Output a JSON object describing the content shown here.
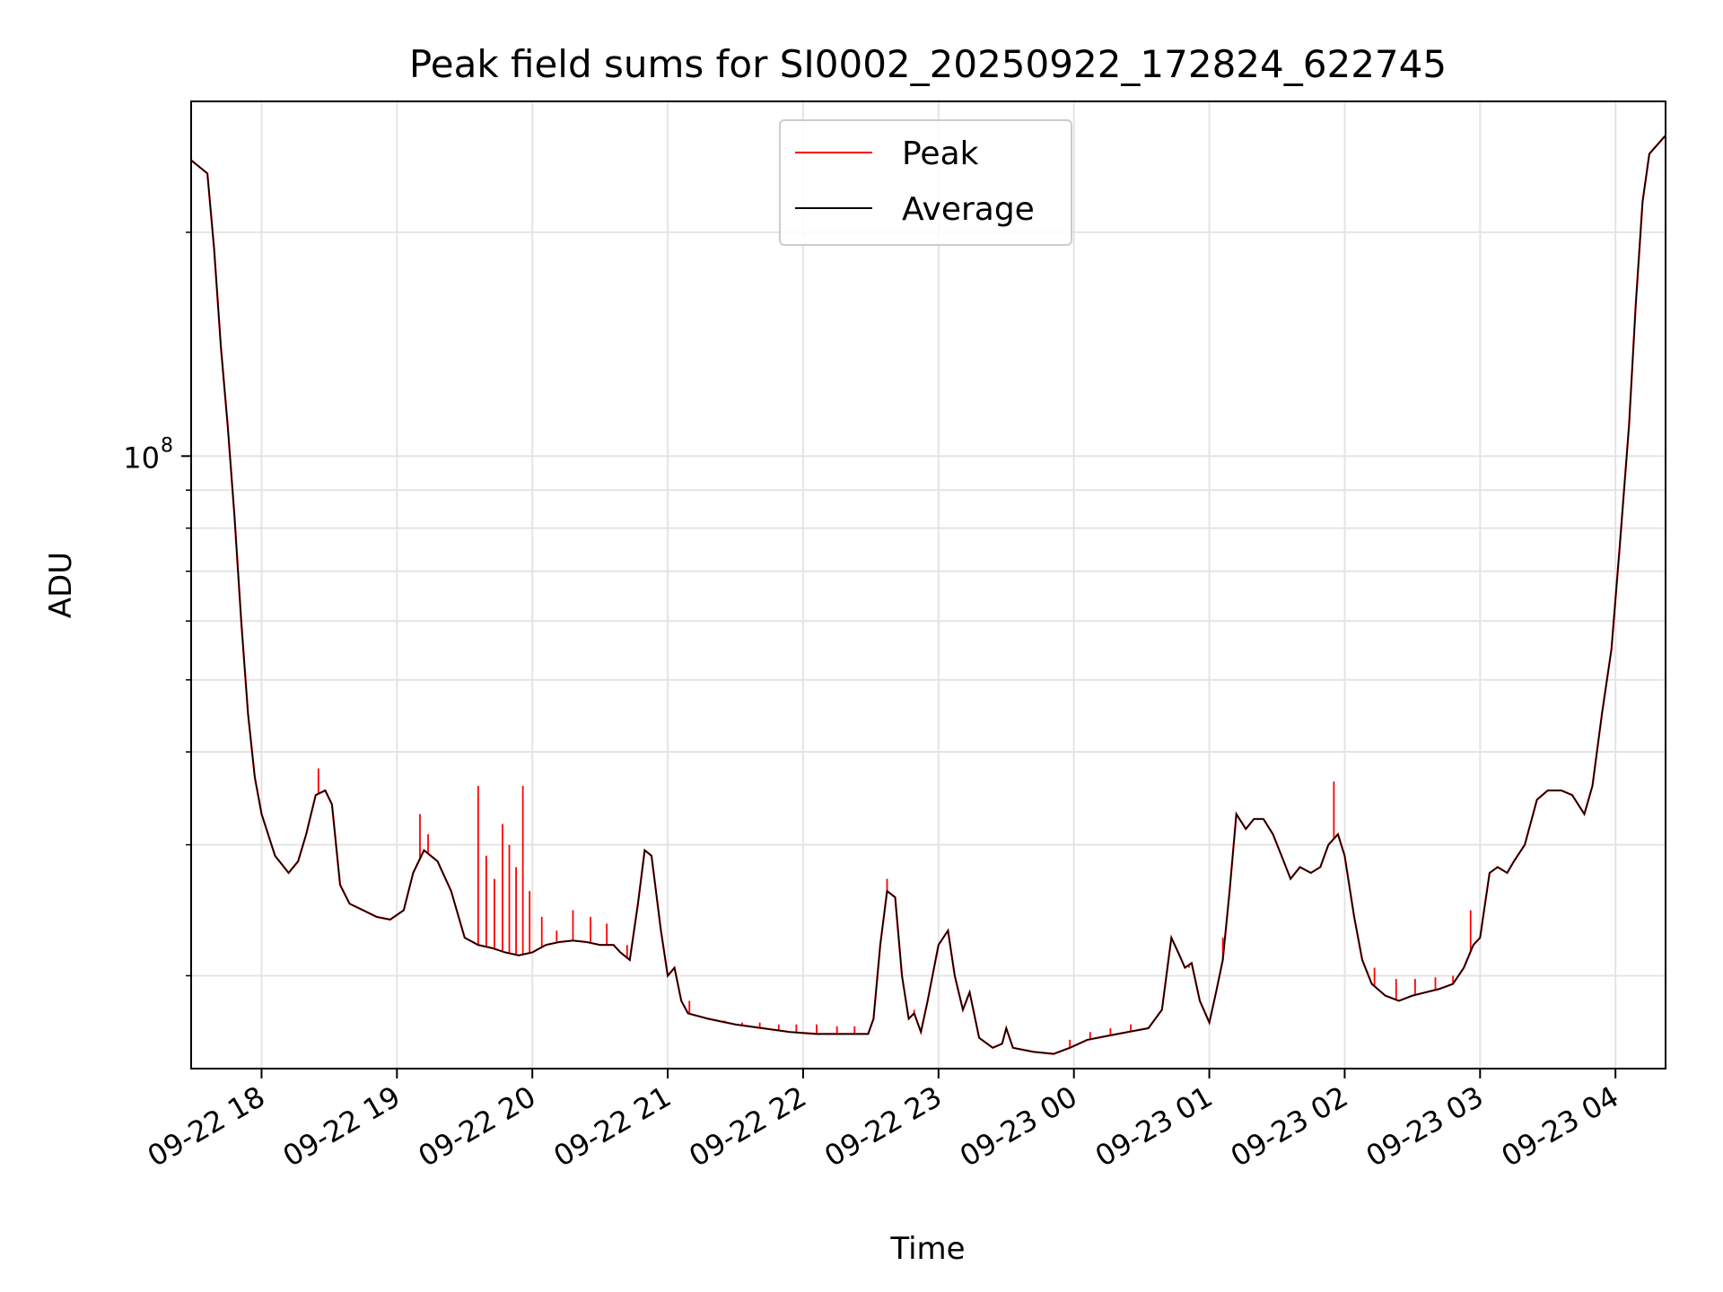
{
  "chart_data": {
    "type": "line",
    "title": "Peak field sums for SI0002_20250922_172824_622745",
    "xlabel": "Time",
    "ylabel": "ADU",
    "y_scale": "log",
    "ylim": [
      15000000,
      300000000
    ],
    "xlim_hours": [
      17.48,
      28.37
    ],
    "y_major_tick": {
      "value": 100000000,
      "base": "10",
      "exponent": "8"
    },
    "y_minor_ticks": [
      20000000,
      30000000,
      40000000,
      50000000,
      60000000,
      70000000,
      80000000,
      90000000,
      200000000
    ],
    "x_ticks": [
      {
        "hour": 18,
        "label": "09-22 18"
      },
      {
        "hour": 19,
        "label": "09-22 19"
      },
      {
        "hour": 20,
        "label": "09-22 20"
      },
      {
        "hour": 21,
        "label": "09-22 21"
      },
      {
        "hour": 22,
        "label": "09-22 22"
      },
      {
        "hour": 23,
        "label": "09-22 23"
      },
      {
        "hour": 24,
        "label": "09-23 00"
      },
      {
        "hour": 25,
        "label": "09-23 01"
      },
      {
        "hour": 26,
        "label": "09-23 02"
      },
      {
        "hour": 27,
        "label": "09-23 03"
      },
      {
        "hour": 28,
        "label": "09-23 04"
      }
    ],
    "grid": true,
    "legend_position": "upper-center",
    "series": [
      {
        "name": "Peak",
        "color": "#ff0000",
        "spikes": [
          [
            18.42,
            38000000
          ],
          [
            19.17,
            33000000
          ],
          [
            19.23,
            31000000
          ],
          [
            19.6,
            36000000
          ],
          [
            19.66,
            29000000
          ],
          [
            19.72,
            27000000
          ],
          [
            19.78,
            32000000
          ],
          [
            19.83,
            30000000
          ],
          [
            19.88,
            28000000
          ],
          [
            19.93,
            36000000
          ],
          [
            19.98,
            26000000
          ],
          [
            20.07,
            24000000
          ],
          [
            20.18,
            23000000
          ],
          [
            20.3,
            24500000
          ],
          [
            20.43,
            24000000
          ],
          [
            20.55,
            23500000
          ],
          [
            20.7,
            22000000
          ],
          [
            21.16,
            18500000
          ],
          [
            21.3,
            17500000
          ],
          [
            21.42,
            17400000
          ],
          [
            21.55,
            17300000
          ],
          [
            21.68,
            17300000
          ],
          [
            21.82,
            17200000
          ],
          [
            21.95,
            17200000
          ],
          [
            22.1,
            17200000
          ],
          [
            22.25,
            17100000
          ],
          [
            22.38,
            17100000
          ],
          [
            22.5,
            17100000
          ],
          [
            22.62,
            27000000
          ],
          [
            22.82,
            18000000
          ],
          [
            23.97,
            16400000
          ],
          [
            24.12,
            16800000
          ],
          [
            24.27,
            17000000
          ],
          [
            24.42,
            17200000
          ],
          [
            24.85,
            20500000
          ],
          [
            25.1,
            22500000
          ],
          [
            25.92,
            36500000
          ],
          [
            26.22,
            20500000
          ],
          [
            26.38,
            19800000
          ],
          [
            26.52,
            19800000
          ],
          [
            26.67,
            19900000
          ],
          [
            26.8,
            20000000
          ],
          [
            26.93,
            24500000
          ]
        ]
      },
      {
        "name": "Average",
        "color": "#000000",
        "points": [
          [
            17.48,
            250000000
          ],
          [
            17.6,
            240000000
          ],
          [
            17.65,
            190000000
          ],
          [
            17.7,
            140000000
          ],
          [
            17.75,
            110000000
          ],
          [
            17.8,
            83000000
          ],
          [
            17.85,
            60000000
          ],
          [
            17.9,
            45000000
          ],
          [
            17.95,
            37000000
          ],
          [
            18.0,
            33000000
          ],
          [
            18.1,
            29000000
          ],
          [
            18.2,
            27500000
          ],
          [
            18.27,
            28500000
          ],
          [
            18.33,
            31000000
          ],
          [
            18.4,
            35000000
          ],
          [
            18.47,
            35500000
          ],
          [
            18.52,
            34000000
          ],
          [
            18.58,
            26500000
          ],
          [
            18.65,
            25000000
          ],
          [
            18.75,
            24500000
          ],
          [
            18.85,
            24000000
          ],
          [
            18.95,
            23800000
          ],
          [
            19.05,
            24500000
          ],
          [
            19.12,
            27500000
          ],
          [
            19.2,
            29500000
          ],
          [
            19.3,
            28500000
          ],
          [
            19.4,
            26000000
          ],
          [
            19.5,
            22500000
          ],
          [
            19.6,
            22000000
          ],
          [
            19.7,
            21800000
          ],
          [
            19.8,
            21500000
          ],
          [
            19.9,
            21300000
          ],
          [
            20.0,
            21500000
          ],
          [
            20.1,
            22000000
          ],
          [
            20.2,
            22200000
          ],
          [
            20.3,
            22300000
          ],
          [
            20.4,
            22200000
          ],
          [
            20.5,
            22000000
          ],
          [
            20.6,
            22000000
          ],
          [
            20.65,
            21500000
          ],
          [
            20.72,
            21000000
          ],
          [
            20.78,
            25000000
          ],
          [
            20.83,
            29500000
          ],
          [
            20.88,
            29000000
          ],
          [
            20.95,
            23000000
          ],
          [
            21.0,
            20000000
          ],
          [
            21.05,
            20500000
          ],
          [
            21.1,
            18500000
          ],
          [
            21.15,
            17800000
          ],
          [
            21.3,
            17500000
          ],
          [
            21.5,
            17200000
          ],
          [
            21.7,
            17000000
          ],
          [
            21.9,
            16800000
          ],
          [
            22.1,
            16700000
          ],
          [
            22.3,
            16700000
          ],
          [
            22.48,
            16700000
          ],
          [
            22.52,
            17500000
          ],
          [
            22.57,
            22000000
          ],
          [
            22.62,
            26000000
          ],
          [
            22.68,
            25500000
          ],
          [
            22.73,
            20000000
          ],
          [
            22.78,
            17500000
          ],
          [
            22.82,
            17800000
          ],
          [
            22.87,
            16800000
          ],
          [
            22.92,
            18500000
          ],
          [
            23.0,
            22000000
          ],
          [
            23.07,
            23000000
          ],
          [
            23.12,
            20000000
          ],
          [
            23.18,
            18000000
          ],
          [
            23.23,
            19000000
          ],
          [
            23.3,
            16500000
          ],
          [
            23.4,
            16000000
          ],
          [
            23.47,
            16200000
          ],
          [
            23.5,
            17000000
          ],
          [
            23.55,
            16000000
          ],
          [
            23.7,
            15800000
          ],
          [
            23.85,
            15700000
          ],
          [
            23.97,
            16000000
          ],
          [
            24.1,
            16400000
          ],
          [
            24.25,
            16600000
          ],
          [
            24.4,
            16800000
          ],
          [
            24.55,
            17000000
          ],
          [
            24.65,
            18000000
          ],
          [
            24.72,
            22500000
          ],
          [
            24.77,
            21500000
          ],
          [
            24.82,
            20500000
          ],
          [
            24.87,
            20800000
          ],
          [
            24.93,
            18500000
          ],
          [
            25.0,
            17300000
          ],
          [
            25.05,
            19000000
          ],
          [
            25.1,
            21000000
          ],
          [
            25.15,
            26000000
          ],
          [
            25.2,
            33000000
          ],
          [
            25.27,
            31500000
          ],
          [
            25.33,
            32500000
          ],
          [
            25.4,
            32500000
          ],
          [
            25.47,
            31000000
          ],
          [
            25.55,
            28500000
          ],
          [
            25.6,
            27000000
          ],
          [
            25.67,
            28000000
          ],
          [
            25.75,
            27500000
          ],
          [
            25.82,
            28000000
          ],
          [
            25.88,
            30000000
          ],
          [
            25.95,
            31000000
          ],
          [
            26.0,
            29000000
          ],
          [
            26.07,
            24000000
          ],
          [
            26.13,
            21000000
          ],
          [
            26.2,
            19500000
          ],
          [
            26.3,
            18800000
          ],
          [
            26.4,
            18500000
          ],
          [
            26.5,
            18800000
          ],
          [
            26.6,
            19000000
          ],
          [
            26.7,
            19200000
          ],
          [
            26.8,
            19500000
          ],
          [
            26.88,
            20500000
          ],
          [
            26.95,
            22000000
          ],
          [
            27.0,
            22500000
          ],
          [
            27.07,
            27500000
          ],
          [
            27.13,
            28000000
          ],
          [
            27.2,
            27500000
          ],
          [
            27.25,
            28500000
          ],
          [
            27.33,
            30000000
          ],
          [
            27.42,
            34500000
          ],
          [
            27.5,
            35500000
          ],
          [
            27.6,
            35500000
          ],
          [
            27.68,
            35000000
          ],
          [
            27.77,
            33000000
          ],
          [
            27.83,
            36000000
          ],
          [
            27.9,
            45000000
          ],
          [
            27.97,
            55000000
          ],
          [
            28.03,
            75000000
          ],
          [
            28.1,
            110000000
          ],
          [
            28.15,
            160000000
          ],
          [
            28.2,
            220000000
          ],
          [
            28.25,
            255000000
          ],
          [
            28.37,
            270000000
          ]
        ]
      }
    ]
  }
}
